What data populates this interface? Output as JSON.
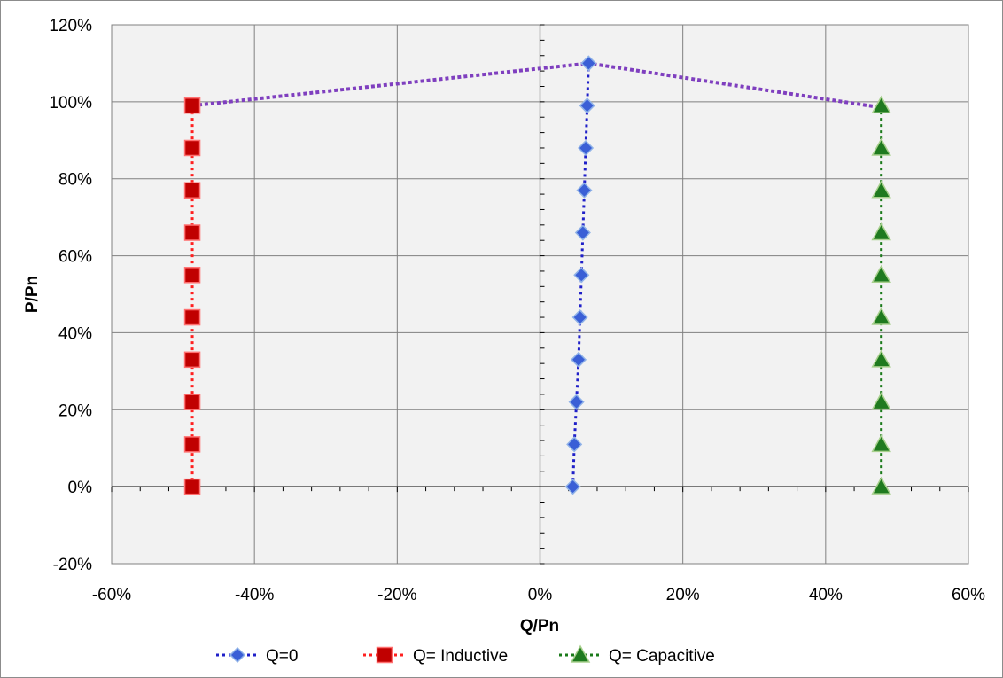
{
  "chart_data": {
    "type": "scatter",
    "title": "",
    "xlabel": "Q/Pn",
    "ylabel": "P/Pn",
    "xlim": [
      -0.6,
      0.6
    ],
    "ylim": [
      -0.2,
      1.2
    ],
    "xticks": [
      -0.6,
      -0.4,
      -0.2,
      0,
      0.2,
      0.4,
      0.6
    ],
    "yticks": [
      -0.2,
      0,
      0.2,
      0.4,
      0.6,
      0.8,
      1.0,
      1.2
    ],
    "xtick_labels": [
      "-60%",
      "-40%",
      "-20%",
      "0%",
      "20%",
      "40%",
      "60%"
    ],
    "ytick_labels": [
      "-20%",
      "0%",
      "20%",
      "40%",
      "60%",
      "80%",
      "100%",
      "120%"
    ],
    "grid": true,
    "legend_position": "bottom",
    "series": [
      {
        "name": "Q=0",
        "marker": "diamond",
        "color": "#1f1fc8",
        "fill": "#3a5fd6",
        "points": [
          [
            0.046,
            0.0
          ],
          [
            0.048,
            0.11
          ],
          [
            0.051,
            0.22
          ],
          [
            0.054,
            0.33
          ],
          [
            0.056,
            0.44
          ],
          [
            0.058,
            0.55
          ],
          [
            0.06,
            0.66
          ],
          [
            0.062,
            0.77
          ],
          [
            0.064,
            0.88
          ],
          [
            0.066,
            0.99
          ],
          [
            0.068,
            1.1
          ]
        ]
      },
      {
        "name": "Q= Inductive",
        "marker": "square",
        "color": "#ff2020",
        "fill": "#c00000",
        "points": [
          [
            -0.487,
            0.0
          ],
          [
            -0.487,
            0.11
          ],
          [
            -0.487,
            0.22
          ],
          [
            -0.487,
            0.33
          ],
          [
            -0.487,
            0.44
          ],
          [
            -0.487,
            0.55
          ],
          [
            -0.487,
            0.66
          ],
          [
            -0.487,
            0.77
          ],
          [
            -0.487,
            0.88
          ],
          [
            -0.487,
            0.99
          ]
        ]
      },
      {
        "name": "Q= Capacitive",
        "marker": "triangle",
        "color": "#1a7a1a",
        "fill": "#1f7a1f",
        "points": [
          [
            0.478,
            0.0
          ],
          [
            0.478,
            0.11
          ],
          [
            0.478,
            0.22
          ],
          [
            0.478,
            0.33
          ],
          [
            0.478,
            0.44
          ],
          [
            0.478,
            0.55
          ],
          [
            0.478,
            0.66
          ],
          [
            0.478,
            0.77
          ],
          [
            0.478,
            0.88
          ],
          [
            0.478,
            0.99
          ]
        ]
      }
    ],
    "envelope": {
      "color": "#7f3fbf",
      "points": [
        [
          -0.487,
          0.99
        ],
        [
          0.068,
          1.1
        ],
        [
          0.478,
          0.985
        ]
      ]
    }
  }
}
